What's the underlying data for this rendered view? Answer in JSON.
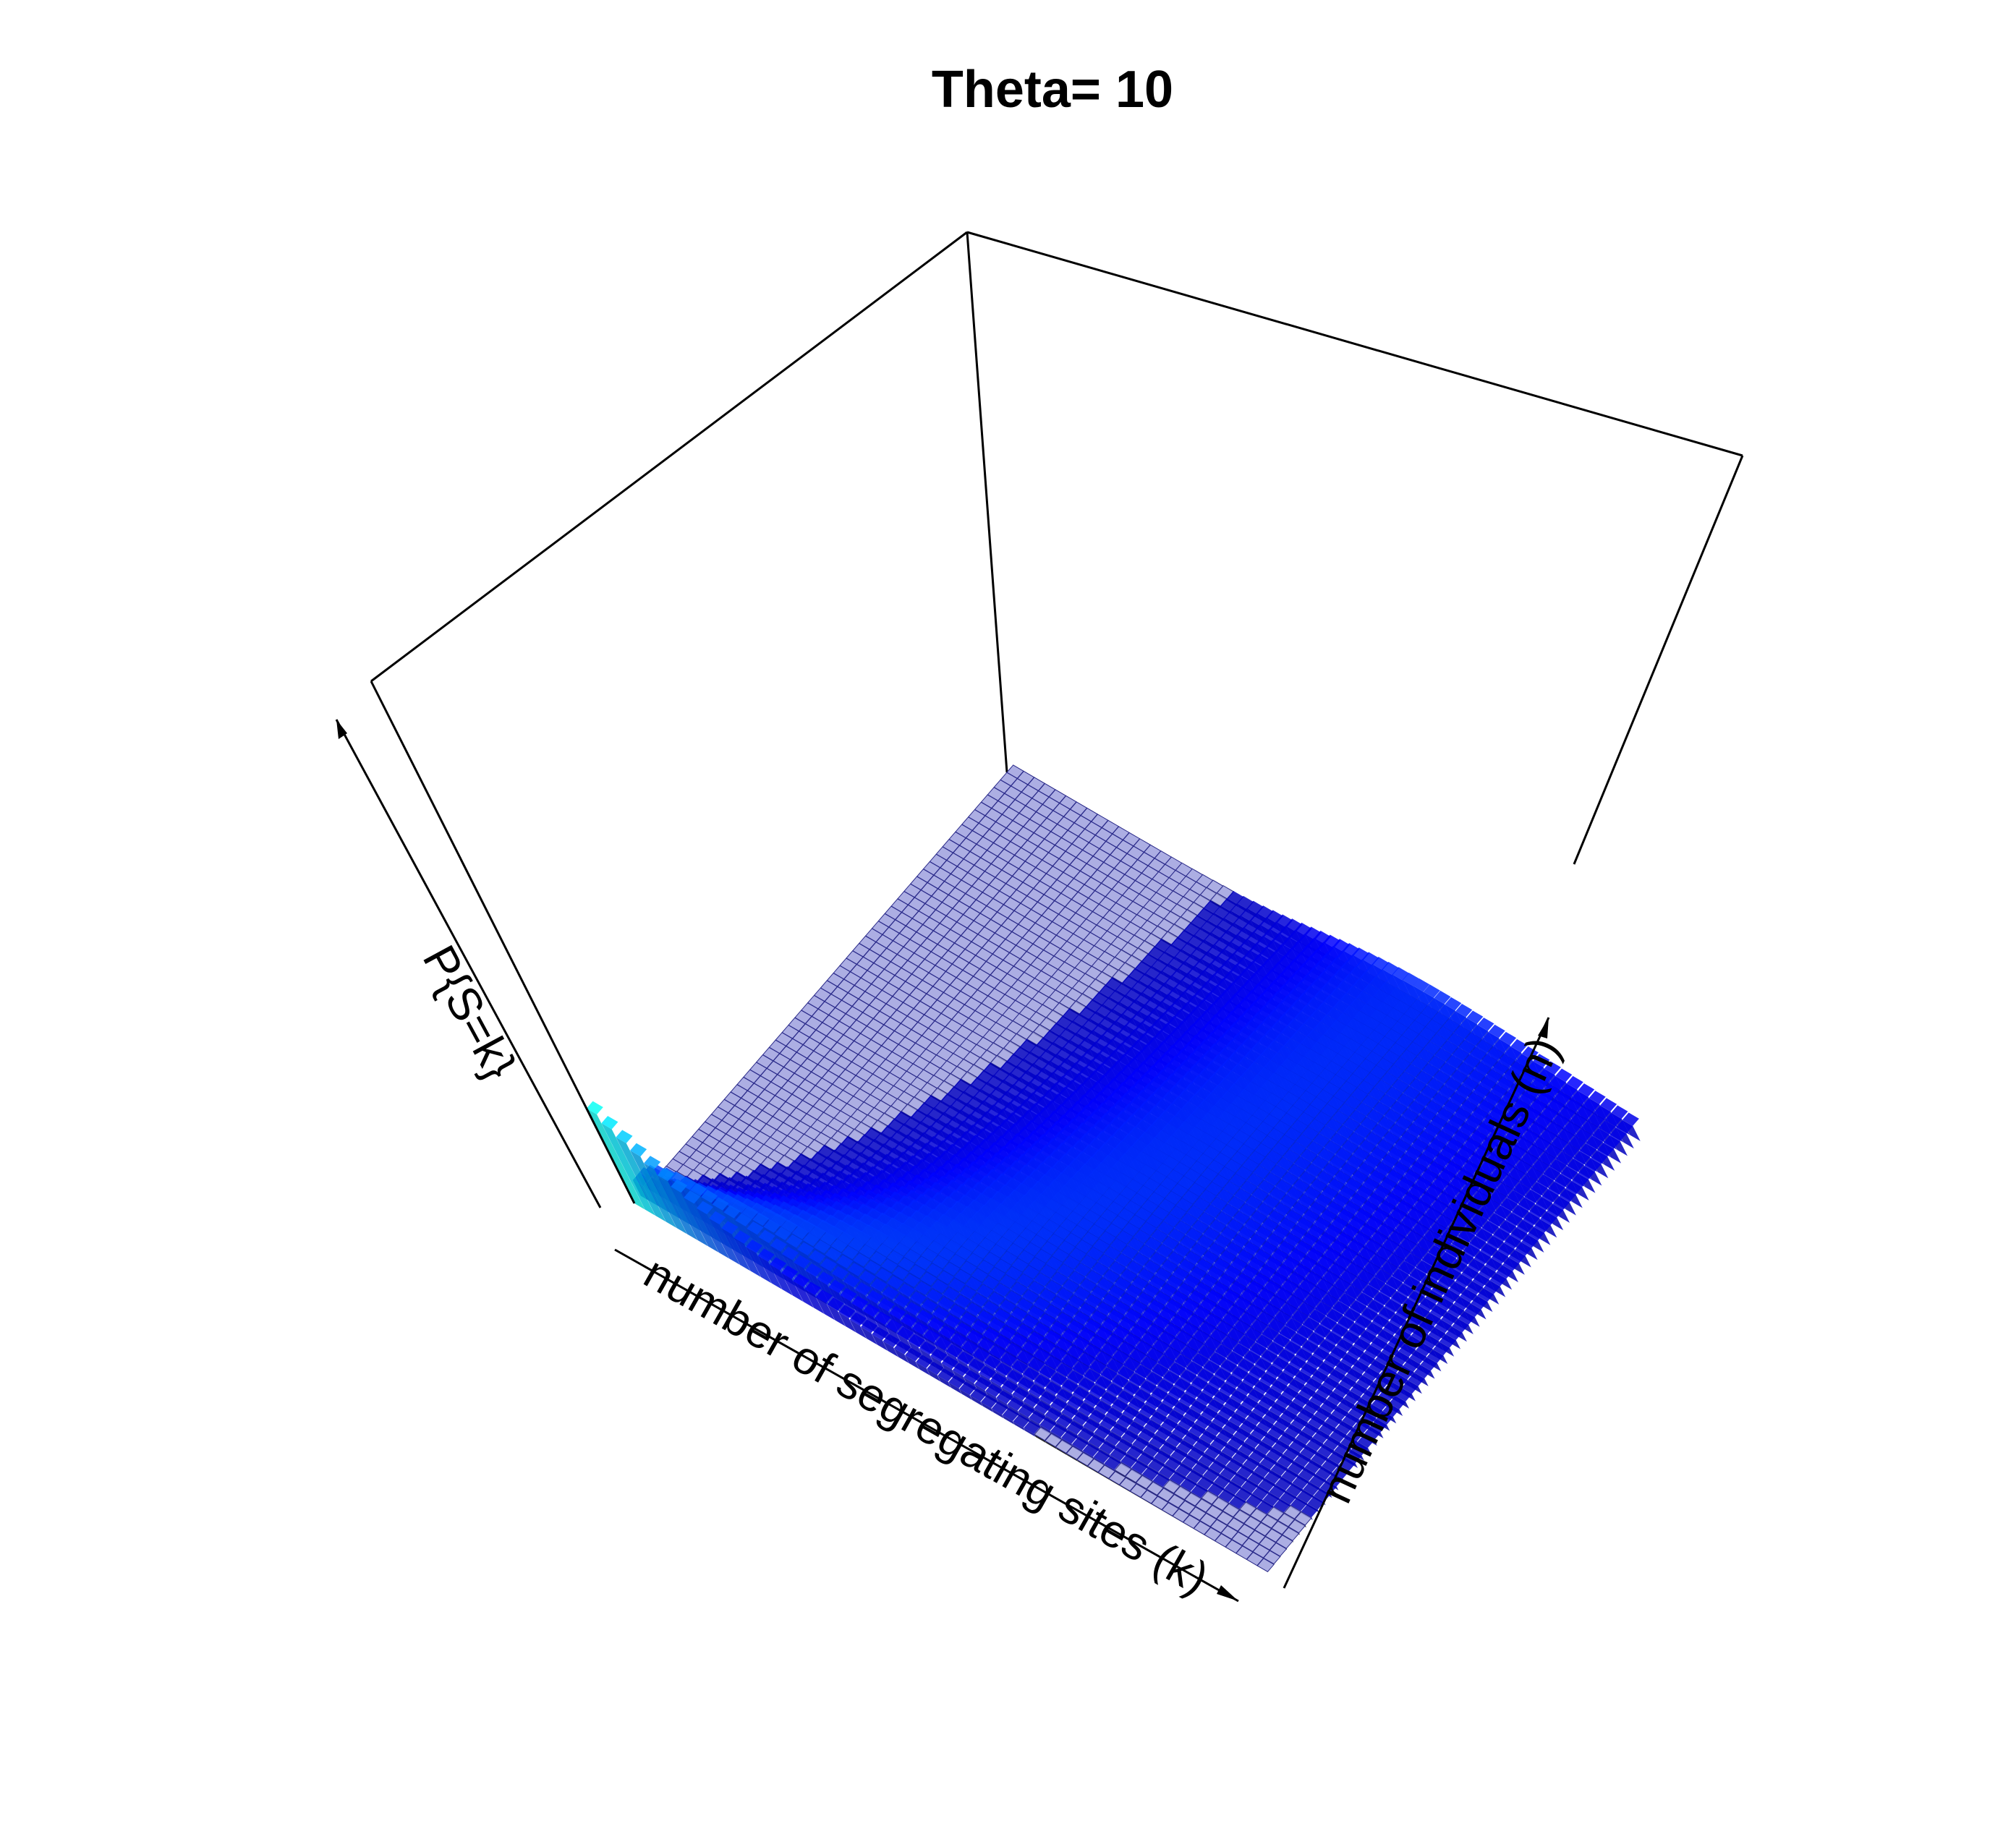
{
  "chart_data": {
    "type": "3d-histogram",
    "title": "Theta= 10",
    "xlabel": "number of segregating sites (k)",
    "ylabel": "number of individuals (n)",
    "zlabel": "P{S=k}",
    "theta": 10,
    "k_range": [
      0,
      60
    ],
    "n_range": [
      2,
      60
    ],
    "z_range": [
      0,
      0.5
    ],
    "colormap": "jet",
    "grid": false,
    "colors": {
      "jet": [
        "#00008f",
        "#0000ff",
        "#00ffff",
        "#ffff00",
        "#ff8000",
        "#ff0000",
        "#800000"
      ],
      "floor": "#9da0de",
      "floor_edge": "#2a2a8a",
      "tallest": "#b86a6a"
    }
  }
}
